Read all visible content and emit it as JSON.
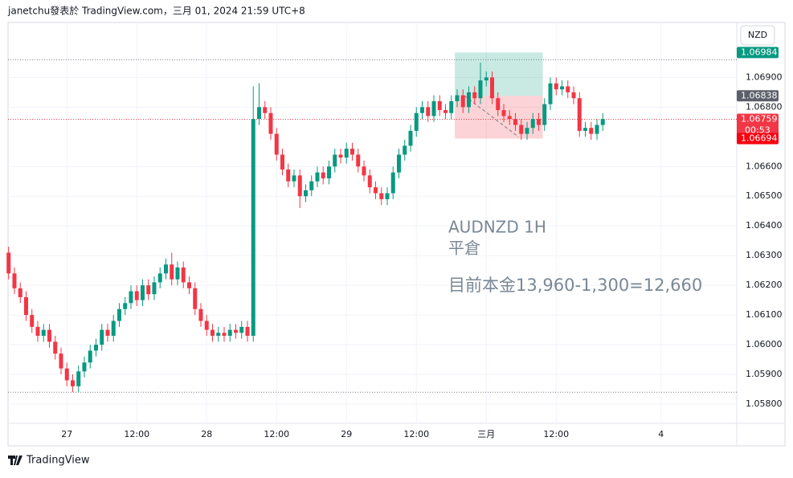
{
  "header": "janetchu發表於 TradingView.com，三月 01, 2024 21:59 UTC+8",
  "footer": "TradingView",
  "currency_button": "NZD",
  "chart_data": {
    "type": "candlestick",
    "up_color": "#089981",
    "down_color": "#f23645",
    "ylim": [
      1.05735,
      1.07085
    ],
    "xlim": [
      -0.1,
      125.0
    ],
    "grid": true,
    "yticks": [
      {
        "value": 1.058,
        "label": "1.05800"
      },
      {
        "value": 1.059,
        "label": "1.05900"
      },
      {
        "value": 1.06,
        "label": "1.06000"
      },
      {
        "value": 1.061,
        "label": "1.06100"
      },
      {
        "value": 1.062,
        "label": "1.06200"
      },
      {
        "value": 1.063,
        "label": "1.06300"
      },
      {
        "value": 1.064,
        "label": "1.06400"
      },
      {
        "value": 1.065,
        "label": "1.06500"
      },
      {
        "value": 1.066,
        "label": "1.06600"
      },
      {
        "value": 1.068,
        "label": "1.06800"
      },
      {
        "value": 1.069,
        "label": "1.06900"
      }
    ],
    "xticks": [
      {
        "value": 10,
        "label": "27"
      },
      {
        "value": 22,
        "label": "12:00"
      },
      {
        "value": 34,
        "label": "28"
      },
      {
        "value": 46,
        "label": "12:00"
      },
      {
        "value": 58,
        "label": "29"
      },
      {
        "value": 70,
        "label": "12:00"
      },
      {
        "value": 82,
        "label": "三月"
      },
      {
        "value": 94,
        "label": "12:00"
      },
      {
        "value": 112,
        "label": "4"
      }
    ],
    "open": [
      1.0631,
      1.0624,
      1.0619,
      1.0616,
      1.061,
      1.0606,
      1.0603,
      1.0605,
      1.0601,
      1.0597,
      1.0592,
      1.0588,
      1.0586,
      1.0591,
      1.0594,
      1.0598,
      1.06,
      1.0605,
      1.0603,
      1.0608,
      1.0612,
      1.0614,
      1.0618,
      1.0615,
      1.062,
      1.0617,
      1.0621,
      1.0624,
      1.0627,
      1.0622,
      1.0626,
      1.0621,
      1.0619,
      1.0612,
      1.0608,
      1.0605,
      1.0603,
      1.0604,
      1.0603,
      1.0605,
      1.0604,
      1.0606,
      1.0603,
      1.0676,
      1.068,
      1.0678,
      1.0671,
      1.0664,
      1.0659,
      1.0655,
      1.0657,
      1.065,
      1.0652,
      1.0655,
      1.0658,
      1.0656,
      1.066,
      1.0664,
      1.0663,
      1.0666,
      1.0664,
      1.066,
      1.0657,
      1.0653,
      1.0651,
      1.0649,
      1.0651,
      1.0658,
      1.0664,
      1.0667,
      1.0672,
      1.0678,
      1.068,
      1.0677,
      1.0682,
      1.0679,
      1.0678,
      1.0682,
      1.0684,
      1.068,
      1.0685,
      1.0683,
      1.0689,
      1.069,
      1.0683,
      1.0679,
      1.0677,
      1.0676,
      1.0674,
      1.0671,
      1.0673,
      1.0676,
      1.0674,
      1.0681,
      1.0688,
      1.0686,
      1.0687,
      1.0685,
      1.0683,
      1.0672,
      1.0673,
      1.0671,
      1.0674
    ],
    "high": [
      1.0633,
      1.0626,
      1.0621,
      1.0618,
      1.0612,
      1.0608,
      1.0607,
      1.0607,
      1.0603,
      1.0599,
      1.0594,
      1.059,
      1.0593,
      1.0596,
      1.06,
      1.0602,
      1.0607,
      1.0607,
      1.061,
      1.0614,
      1.0616,
      1.062,
      1.062,
      1.0622,
      1.0622,
      1.0623,
      1.0626,
      1.0629,
      1.0631,
      1.0628,
      1.0628,
      1.0623,
      1.0621,
      1.0614,
      1.061,
      1.0607,
      1.0606,
      1.0606,
      1.0607,
      1.0607,
      1.0608,
      1.0608,
      1.0687,
      1.0688,
      1.0682,
      1.068,
      1.0673,
      1.0666,
      1.0661,
      1.0659,
      1.0659,
      1.0654,
      1.0657,
      1.066,
      1.066,
      1.0662,
      1.0666,
      1.0666,
      1.0668,
      1.0668,
      1.0666,
      1.0662,
      1.0659,
      1.0655,
      1.0653,
      1.0653,
      1.066,
      1.0666,
      1.0669,
      1.0674,
      1.068,
      1.0682,
      1.0682,
      1.0684,
      1.0684,
      1.0681,
      1.0684,
      1.0686,
      1.0686,
      1.0687,
      1.0687,
      1.0695,
      1.0692,
      1.0692,
      1.0685,
      1.0681,
      1.0679,
      1.0678,
      1.0676,
      1.0675,
      1.0678,
      1.0678,
      1.0683,
      1.069,
      1.069,
      1.0689,
      1.0689,
      1.0687,
      1.0685,
      1.0675,
      1.0675,
      1.0676,
      1.0678
    ],
    "low": [
      1.0622,
      1.0617,
      1.0614,
      1.0608,
      1.0604,
      1.0601,
      1.0601,
      1.0599,
      1.0595,
      1.059,
      1.0586,
      1.0584,
      1.0584,
      1.0589,
      1.0592,
      1.0596,
      1.0598,
      1.0601,
      1.0601,
      1.0606,
      1.061,
      1.0612,
      1.0613,
      1.0613,
      1.0615,
      1.0615,
      1.0619,
      1.0622,
      1.062,
      1.062,
      1.0619,
      1.0617,
      1.061,
      1.0606,
      1.0603,
      1.0601,
      1.0601,
      1.0601,
      1.0601,
      1.0602,
      1.0602,
      1.0601,
      1.0601,
      1.0674,
      1.0676,
      1.0669,
      1.0662,
      1.0657,
      1.0653,
      1.0653,
      1.0646,
      1.0648,
      1.065,
      1.0653,
      1.0654,
      1.0654,
      1.0658,
      1.0661,
      1.0661,
      1.0662,
      1.0658,
      1.0655,
      1.0651,
      1.0649,
      1.0647,
      1.0647,
      1.0649,
      1.0656,
      1.0662,
      1.0665,
      1.067,
      1.0676,
      1.0675,
      1.0675,
      1.0677,
      1.0676,
      1.0676,
      1.068,
      1.0678,
      1.0678,
      1.0681,
      1.0681,
      1.0687,
      1.0681,
      1.0677,
      1.0675,
      1.0674,
      1.0672,
      1.0669,
      1.0669,
      1.0671,
      1.0672,
      1.0672,
      1.0679,
      1.0684,
      1.0684,
      1.0683,
      1.0681,
      1.067,
      1.067,
      1.0669,
      1.0669,
      1.0672
    ],
    "close": [
      1.0624,
      1.0619,
      1.0616,
      1.061,
      1.0606,
      1.0603,
      1.0605,
      1.0601,
      1.0597,
      1.0592,
      1.0588,
      1.0586,
      1.0591,
      1.0594,
      1.0598,
      1.06,
      1.0605,
      1.0603,
      1.0608,
      1.0612,
      1.0614,
      1.0618,
      1.0615,
      1.062,
      1.0617,
      1.0621,
      1.0624,
      1.0627,
      1.0622,
      1.0626,
      1.0621,
      1.0619,
      1.0612,
      1.0608,
      1.0605,
      1.0603,
      1.0604,
      1.0603,
      1.0605,
      1.0604,
      1.0606,
      1.0603,
      1.0676,
      1.068,
      1.0678,
      1.0671,
      1.0664,
      1.0659,
      1.0655,
      1.0657,
      1.065,
      1.0652,
      1.0655,
      1.0658,
      1.0656,
      1.066,
      1.0664,
      1.0663,
      1.0666,
      1.0664,
      1.066,
      1.0657,
      1.0653,
      1.0651,
      1.0649,
      1.0651,
      1.0658,
      1.0664,
      1.0667,
      1.0672,
      1.0678,
      1.068,
      1.0677,
      1.0682,
      1.0679,
      1.0678,
      1.0682,
      1.0684,
      1.068,
      1.0685,
      1.0683,
      1.0689,
      1.069,
      1.0683,
      1.0679,
      1.0677,
      1.0676,
      1.0674,
      1.0671,
      1.0673,
      1.0676,
      1.0674,
      1.0681,
      1.0688,
      1.0686,
      1.0687,
      1.0685,
      1.0683,
      1.0672,
      1.0673,
      1.0671,
      1.0674,
      1.0676
    ],
    "hlines": [
      1.0696,
      1.0584
    ],
    "position_tool": {
      "x": [
        76.6,
        91.7
      ],
      "target": 1.06984,
      "entry": 1.06838,
      "stop": 1.06694
    },
    "last_price": 1.06759,
    "countdown": "00:53",
    "annotations": [
      "AUDNZD 1H",
      "平倉",
      "目前本金13,960-1,300=12,660"
    ]
  }
}
